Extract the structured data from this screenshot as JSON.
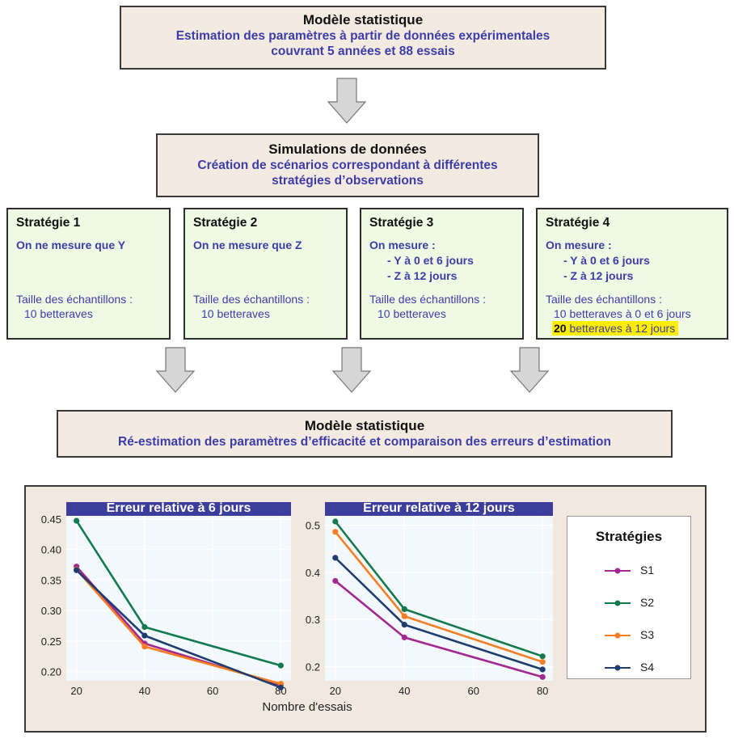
{
  "top": {
    "title": "Modèle statistique",
    "line1": "Estimation des paramètres à partir de données expérimentales",
    "line2": "couvrant 5 années et 88 essais"
  },
  "sim": {
    "title": "Simulations de données",
    "line1": "Création de scénarios correspondant à différentes",
    "line2": "stratégies d’observations"
  },
  "strategies": [
    {
      "title": "Stratégie 1",
      "measure": "On ne mesure que Y",
      "size_label": "Taille des échantillons :",
      "size": "10 betteraves"
    },
    {
      "title": "Stratégie 2",
      "measure": "On ne mesure que Z",
      "size_label": "Taille des échantillons :",
      "size": "10 betteraves"
    },
    {
      "title": "Stratégie 3",
      "measure": "On mesure :",
      "m1": "- Y à 0 et 6 jours",
      "m2": "- Z à 12 jours",
      "size_label": "Taille des échantillons :",
      "size": "10 betteraves"
    },
    {
      "title": "Stratégie 4",
      "measure": "On mesure :",
      "m1": "- Y à 0 et 6 jours",
      "m2": "- Z à 12 jours",
      "size_label": "Taille des échantillons :",
      "size": "10 betteraves à 0 et 6 jours",
      "size2_num": "20",
      "size2_rest": " betteraves à 12 jours"
    }
  ],
  "bottom": {
    "title": "Modèle statistique",
    "line1": "Ré-estimation des paramètres d’efficacité et comparaison des erreurs d’estimation"
  },
  "colors": {
    "S1": "#a3288f",
    "S2": "#137a4e",
    "S3": "#f47e21",
    "S4": "#1e3d6e",
    "strip": "#3d3d9c"
  },
  "chart_data": [
    {
      "type": "line",
      "title": "Erreur relative à 6 jours",
      "x": [
        20,
        40,
        80
      ],
      "ylim": [
        0.185,
        0.455
      ],
      "yticks": [
        0.2,
        0.25,
        0.3,
        0.35,
        0.4,
        0.45
      ],
      "ytick_labels": [
        "0.20",
        "0.25",
        "0.30",
        "0.35",
        "0.40",
        "0.45"
      ],
      "xticks": [
        20,
        40,
        60,
        80
      ],
      "xtick_labels": [
        "20",
        "40",
        "60",
        "80"
      ],
      "series": [
        {
          "name": "S1",
          "values": [
            0.372,
            0.246,
            0.178
          ]
        },
        {
          "name": "S2",
          "values": [
            0.447,
            0.273,
            0.21
          ]
        },
        {
          "name": "S3",
          "values": [
            0.367,
            0.241,
            0.18
          ]
        },
        {
          "name": "S4",
          "values": [
            0.366,
            0.259,
            0.174
          ]
        }
      ]
    },
    {
      "type": "line",
      "title": "Erreur relative à 12 jours",
      "x": [
        20,
        40,
        80
      ],
      "ylim": [
        0.17,
        0.52
      ],
      "yticks": [
        0.2,
        0.3,
        0.4,
        0.5
      ],
      "ytick_labels": [
        "0.2",
        "0.3",
        "0.4",
        "0.5"
      ],
      "xticks": [
        20,
        40,
        60,
        80
      ],
      "xtick_labels": [
        "20",
        "40",
        "60",
        "80"
      ],
      "series": [
        {
          "name": "S1",
          "values": [
            0.382,
            0.262,
            0.178
          ]
        },
        {
          "name": "S2",
          "values": [
            0.508,
            0.322,
            0.222
          ]
        },
        {
          "name": "S3",
          "values": [
            0.486,
            0.307,
            0.21
          ]
        },
        {
          "name": "S4",
          "values": [
            0.431,
            0.289,
            0.194
          ]
        }
      ]
    }
  ],
  "xlabel": "Nombre d'essais",
  "legend": {
    "title": "Stratégies",
    "items": [
      "S1",
      "S2",
      "S3",
      "S4"
    ]
  }
}
